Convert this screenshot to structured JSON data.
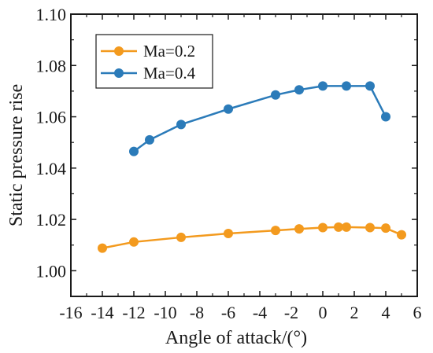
{
  "chart_data": {
    "type": "line",
    "title": "",
    "xlabel": "Angle of attack/(°)",
    "ylabel": "Static pressure rise",
    "xlim": [
      -16,
      6
    ],
    "ylim": [
      0.99,
      1.1
    ],
    "xticks": [
      -16,
      -14,
      -12,
      -10,
      -8,
      -6,
      -4,
      -2,
      0,
      2,
      4,
      6
    ],
    "xtick_labels": [
      "-16",
      "-14",
      "-12",
      "-10",
      "-8",
      "-6",
      "-4",
      "-2",
      "0",
      "2",
      "4",
      "6"
    ],
    "yticks": [
      1.0,
      1.02,
      1.04,
      1.06,
      1.08,
      1.1
    ],
    "ytick_labels": [
      "1.00",
      "1.02",
      "1.04",
      "1.06",
      "1.08",
      "1.10"
    ],
    "grid": false,
    "legend_position": "top-left",
    "series": [
      {
        "name": "Ma=0.2",
        "color": "#F39A1E",
        "x": [
          -14,
          -12,
          -9,
          -6,
          -3,
          -1.5,
          0,
          1,
          1.5,
          3,
          4,
          5
        ],
        "y": [
          1.0088,
          1.0112,
          1.013,
          1.0145,
          1.0157,
          1.0163,
          1.0168,
          1.017,
          1.017,
          1.0168,
          1.0166,
          1.014
        ]
      },
      {
        "name": "Ma=0.4",
        "color": "#2B7BB9",
        "x": [
          -12,
          -11,
          -9,
          -6,
          -3,
          -1.5,
          0,
          1.5,
          3,
          4
        ],
        "y": [
          1.0465,
          1.051,
          1.057,
          1.063,
          1.0685,
          1.0705,
          1.072,
          1.072,
          1.072,
          1.06
        ]
      }
    ]
  }
}
